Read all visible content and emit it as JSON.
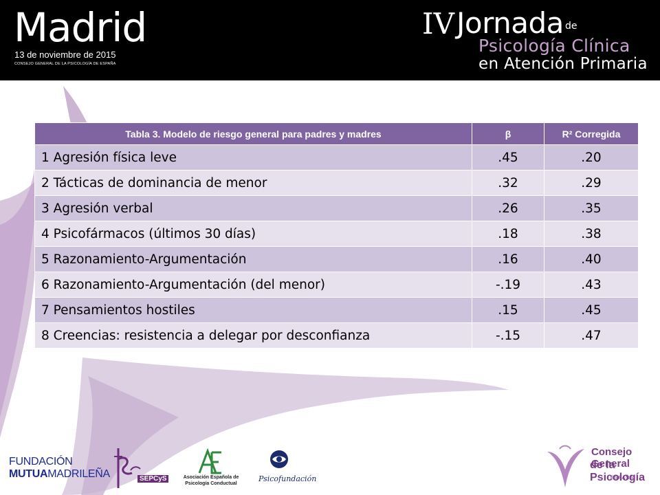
{
  "header": {
    "city": "Madrid",
    "date": "13 de noviembre de 2015",
    "org": "CONSEJO GENERAL DE LA PSICOLOGÍA DE ESPAÑA",
    "edition": "IV",
    "event": "Jornada",
    "de": "de",
    "subtitle1": "Psicología Clínica",
    "subtitle2": "en Atención Primaria"
  },
  "table": {
    "headers": [
      "Tabla 3. Modelo de riesgo general para padres y madres",
      "β",
      "R² Corregida"
    ],
    "rows": [
      [
        "1 Agresión física leve",
        ".45",
        ".20"
      ],
      [
        "2 Tácticas de dominancia de menor",
        ".32",
        ".29"
      ],
      [
        "3 Agresión verbal",
        ".26",
        ".35"
      ],
      [
        "4 Psicofármacos (últimos 30 días)",
        ".18",
        ".38"
      ],
      [
        "5 Razonamiento-Argumentación",
        ".16",
        ".40"
      ],
      [
        "6 Razonamiento-Argumentación (del menor)",
        "-.19",
        ".43"
      ],
      [
        "7 Pensamientos hostiles",
        ".15",
        ".45"
      ],
      [
        "8 Creencias: resistencia a delegar por desconfianza",
        "-.15",
        ".47"
      ]
    ]
  },
  "footer": {
    "fundacion_line1": "FUNDACIÓN",
    "fundacion_line2_bold": "MUTUA",
    "fundacion_line2_rest": "MADRILEÑA",
    "sepcys": "SEPCyS",
    "aepc": "Asociación Española de Psicología Conductual",
    "psicofundacion": "Psicofundación",
    "cgp_line1": "Consejo General",
    "cgp_line2": "de la Psicología",
    "cgp_line3": "ESPAÑA"
  },
  "colors": {
    "header_bg": "#000000",
    "table_header": "#8064a2",
    "row_odd": "#cdc3dc",
    "row_even": "#e7e1ee",
    "accent_lilac": "#c7a1cd",
    "brand_purple": "#7a3e88"
  }
}
